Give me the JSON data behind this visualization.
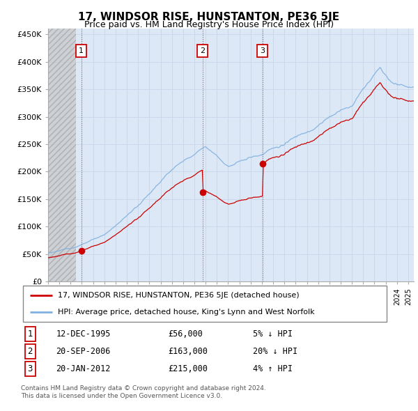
{
  "title": "17, WINDSOR RISE, HUNSTANTON, PE36 5JE",
  "subtitle": "Price paid vs. HM Land Registry's House Price Index (HPI)",
  "ylim": [
    0,
    460000
  ],
  "yticks": [
    0,
    50000,
    100000,
    150000,
    200000,
    250000,
    300000,
    350000,
    400000,
    450000
  ],
  "sale_color": "#cc0000",
  "hpi_color": "#7fb0e0",
  "sale_label": "17, WINDSOR RISE, HUNSTANTON, PE36 5JE (detached house)",
  "hpi_label": "HPI: Average price, detached house, King's Lynn and West Norfolk",
  "transactions": [
    {
      "num": 1,
      "date": "12-DEC-1995",
      "price": 56000,
      "hpi_diff": "5% ↓ HPI",
      "x_year": 1995.95
    },
    {
      "num": 2,
      "date": "20-SEP-2006",
      "price": 163000,
      "hpi_diff": "20% ↓ HPI",
      "x_year": 2006.72
    },
    {
      "num": 3,
      "date": "20-JAN-2012",
      "price": 215000,
      "hpi_diff": "4% ↑ HPI",
      "x_year": 2012.05
    }
  ],
  "footer": "Contains HM Land Registry data © Crown copyright and database right 2024.\nThis data is licensed under the Open Government Licence v3.0.",
  "grid_color": "#c8d4e8",
  "background_color": "#dce8f5",
  "xmin": 1993.0,
  "xmax": 2025.5,
  "hatch_end": 1995.5
}
